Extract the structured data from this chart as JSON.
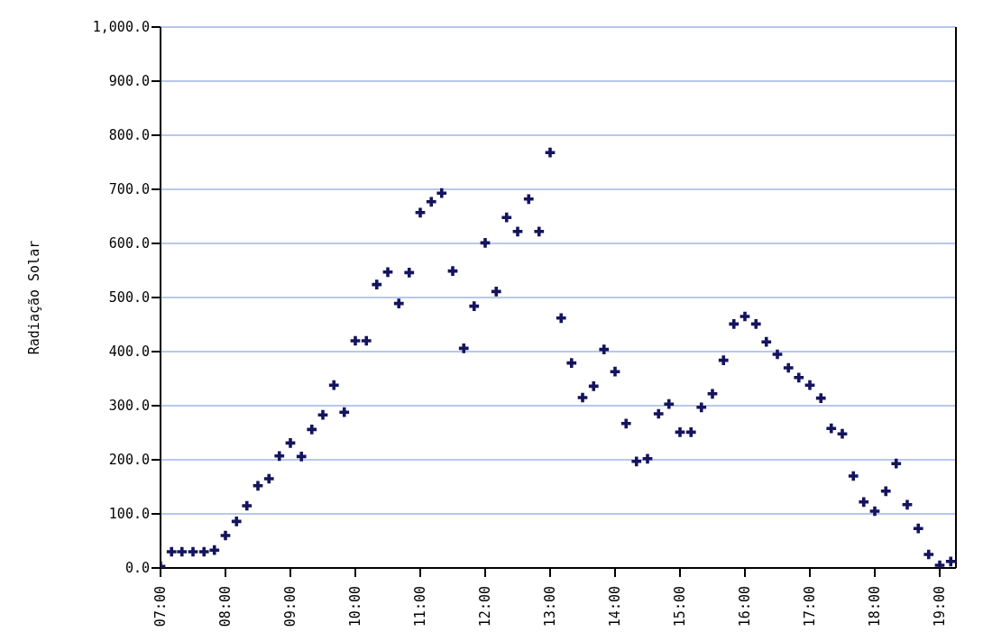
{
  "chart_data": {
    "type": "scatter",
    "ylabel": "Radiação Solar",
    "x": [
      7,
      7.17,
      7.33,
      7.5,
      7.67,
      7.83,
      8,
      8.17,
      8.33,
      8.5,
      8.67,
      8.83,
      9,
      9.17,
      9.33,
      9.5,
      9.67,
      9.83,
      10,
      10.17,
      10.33,
      10.5,
      10.67,
      10.83,
      11,
      11.17,
      11.33,
      11.5,
      11.67,
      11.83,
      12,
      12.17,
      12.33,
      12.5,
      12.67,
      12.83,
      13,
      13.17,
      13.33,
      13.5,
      13.67,
      13.83,
      14,
      14.17,
      14.33,
      14.5,
      14.67,
      14.83,
      15,
      15.17,
      15.33,
      15.5,
      15.67,
      15.83,
      16,
      16.17,
      16.33,
      16.5,
      16.67,
      16.83,
      17,
      17.17,
      17.33,
      17.5,
      17.67,
      17.83,
      18,
      18.17,
      18.33,
      18.5,
      18.67,
      18.83,
      19,
      19.17
    ],
    "series": [
      {
        "color": "#14145e",
        "values": [
          3,
          30,
          30,
          30,
          30,
          33,
          60,
          86,
          115,
          152,
          165,
          207,
          231,
          206,
          256,
          283,
          338,
          288,
          420,
          420,
          524,
          547,
          489,
          546,
          657,
          677,
          693,
          549,
          406,
          484,
          601,
          511,
          648,
          622,
          682,
          622,
          768,
          462,
          379,
          315,
          336,
          404,
          363,
          267,
          197,
          202,
          285,
          303,
          251,
          251,
          297,
          322,
          384,
          451,
          465,
          451,
          418,
          395,
          370,
          352,
          338,
          314,
          258,
          248,
          170,
          122,
          105,
          142,
          193,
          117,
          73,
          25,
          5,
          12
        ]
      }
    ],
    "xlim": [
      7,
      19.25
    ],
    "xticks": [
      {
        "value": 7,
        "label": "07:00"
      },
      {
        "value": 8,
        "label": "08:00"
      },
      {
        "value": 9,
        "label": "09:00"
      },
      {
        "value": 10,
        "label": "10:00"
      },
      {
        "value": 11,
        "label": "11:00"
      },
      {
        "value": 12,
        "label": "12:00"
      },
      {
        "value": 13,
        "label": "13:00"
      },
      {
        "value": 14,
        "label": "14:00"
      },
      {
        "value": 15,
        "label": "15:00"
      },
      {
        "value": 16,
        "label": "16:00"
      },
      {
        "value": 17,
        "label": "17:00"
      },
      {
        "value": 18,
        "label": "18:00"
      },
      {
        "value": 19,
        "label": "19:00"
      }
    ],
    "ylim": [
      0,
      1000
    ],
    "yticks": [
      {
        "value": 0,
        "label": "0.0"
      },
      {
        "value": 100,
        "label": "100.0"
      },
      {
        "value": 200,
        "label": "200.0"
      },
      {
        "value": 300,
        "label": "300.0"
      },
      {
        "value": 400,
        "label": "400.0"
      },
      {
        "value": 500,
        "label": "500.0"
      },
      {
        "value": 600,
        "label": "600.0"
      },
      {
        "value": 700,
        "label": "700.0"
      },
      {
        "value": 800,
        "label": "800.0"
      },
      {
        "value": 900,
        "label": "900.0"
      },
      {
        "value": 1000,
        "label": "1,000.0"
      }
    ],
    "grid": "y",
    "marker": "cross"
  }
}
